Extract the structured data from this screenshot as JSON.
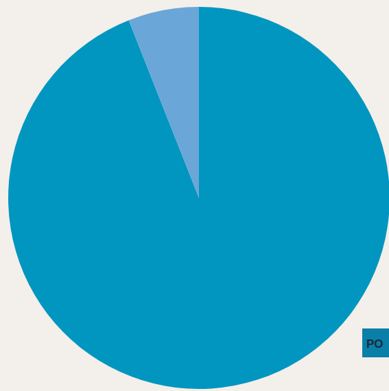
{
  "chart_data": {
    "type": "pie",
    "values": [
      94,
      6
    ],
    "colors": [
      "#0096c0",
      "#6ba6d9"
    ],
    "annotations": [
      "PO"
    ]
  }
}
